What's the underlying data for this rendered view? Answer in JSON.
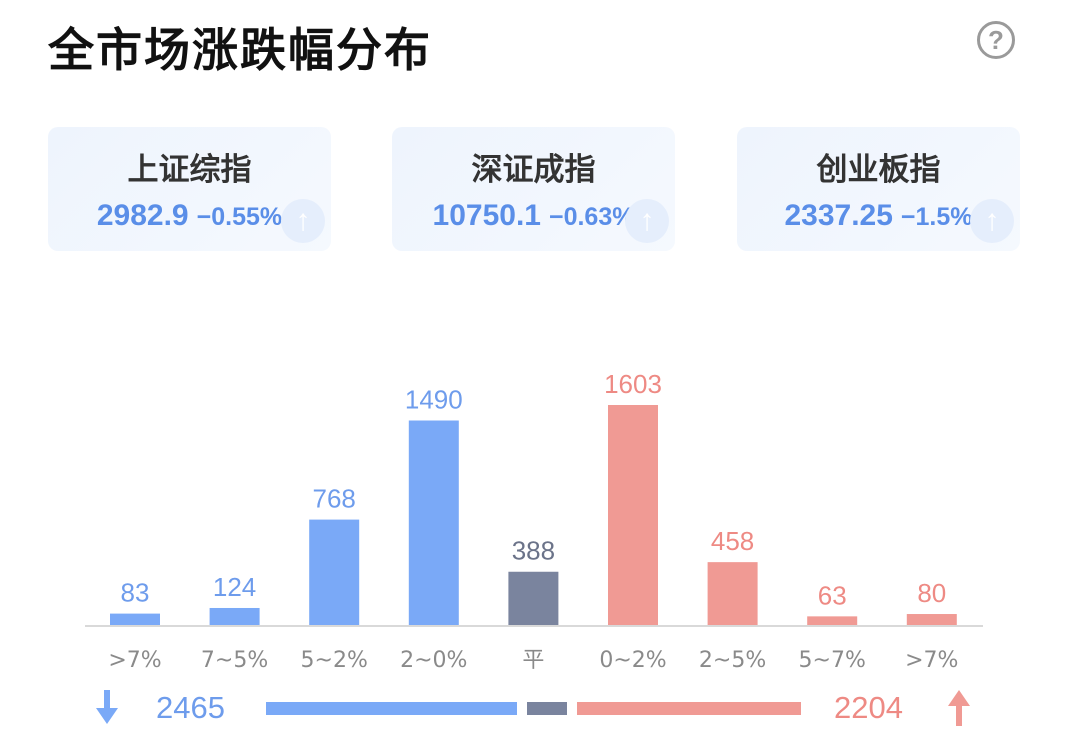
{
  "header": {
    "title": "全市场涨跌幅分布",
    "help_label": "?"
  },
  "indices": [
    {
      "name": "上证综指",
      "value": "2982.9",
      "change": "−0.55%"
    },
    {
      "name": "深证成指",
      "value": "10750.1",
      "change": "−0.63%"
    },
    {
      "name": "创业板指",
      "value": "2337.25",
      "change": "−1.5%"
    }
  ],
  "colors": {
    "down": "#7aa9f7",
    "flat": "#7a849e",
    "up": "#f09a94",
    "down_text": "#6e9cec",
    "flat_text": "#6b7389",
    "up_text": "#ee8a84"
  },
  "chart_data": {
    "type": "bar",
    "categories": [
      ">7%",
      "7~5%",
      "5~2%",
      "2~0%",
      "平",
      "0~2%",
      "2~5%",
      "5~7%",
      ">7%"
    ],
    "values": [
      83,
      124,
      768,
      1490,
      388,
      1603,
      458,
      63,
      80
    ],
    "groups": [
      "down",
      "down",
      "down",
      "down",
      "flat",
      "up",
      "up",
      "up",
      "up"
    ],
    "ylim": [
      0,
      1603
    ],
    "grid": false
  },
  "summary": {
    "down_total": "2465",
    "up_total": "2204",
    "down_total_value": 2465,
    "flat_total_value": 388,
    "up_total_value": 2204
  }
}
